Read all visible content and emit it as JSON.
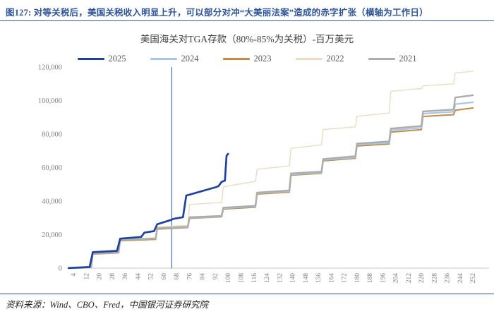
{
  "header": {
    "title": "图127: 对等关税后，美国关税收入明显上升，可以部分对冲“大美丽法案”造成的赤字扩张（横轴为工作日）"
  },
  "footer": {
    "source": "资料来源：Wind、CBO、Fred，中国银河证券研究院"
  },
  "colors": {
    "header_accent": "#2F5496",
    "axis_line": "#C8C8C8",
    "tick_label": "#7f7f7f",
    "reference_line": "#4A6FB5"
  },
  "chart_data": {
    "type": "line",
    "title": "美国海关对TGA存款（80%-85%为关税）-百万美元",
    "xlabel": "工作日",
    "ylabel": "百万美元",
    "ylim": [
      0,
      120000
    ],
    "y_ticks": [
      0,
      20000,
      40000,
      60000,
      80000,
      100000,
      120000
    ],
    "x_ticks": [
      4,
      12,
      20,
      28,
      36,
      44,
      52,
      60,
      68,
      76,
      84,
      92,
      100,
      108,
      116,
      124,
      132,
      140,
      148,
      156,
      164,
      172,
      180,
      188,
      196,
      204,
      212,
      220,
      228,
      236,
      244,
      252
    ],
    "x_max": 262,
    "grid": false,
    "legend_position": "top",
    "reference_line_x": 65,
    "series": [
      {
        "name": "2022",
        "color": "#E9DCC2",
        "width": 1.4,
        "points": [
          [
            1,
            0
          ],
          [
            15,
            400
          ],
          [
            16,
            8900
          ],
          [
            32,
            9600
          ],
          [
            33,
            17300
          ],
          [
            55,
            18200
          ],
          [
            56,
            24600
          ],
          [
            75,
            25600
          ],
          [
            76,
            38000
          ],
          [
            96,
            39200
          ],
          [
            97,
            48500
          ],
          [
            117,
            51800
          ],
          [
            118,
            59000
          ],
          [
            138,
            61000
          ],
          [
            139,
            71500
          ],
          [
            158,
            73600
          ],
          [
            159,
            82700
          ],
          [
            179,
            84300
          ],
          [
            180,
            90600
          ],
          [
            200,
            92600
          ],
          [
            201,
            105500
          ],
          [
            220,
            107200
          ],
          [
            221,
            108800
          ],
          [
            240,
            110000
          ],
          [
            241,
            116500
          ],
          [
            252,
            117500
          ]
        ]
      },
      {
        "name": "2023",
        "color": "#BF8B45",
        "width": 2.0,
        "points": [
          [
            1,
            0
          ],
          [
            15,
            300
          ],
          [
            16,
            8400
          ],
          [
            32,
            9100
          ],
          [
            33,
            16400
          ],
          [
            55,
            17200
          ],
          [
            56,
            23300
          ],
          [
            75,
            24200
          ],
          [
            76,
            29700
          ],
          [
            96,
            30600
          ],
          [
            97,
            35300
          ],
          [
            117,
            36400
          ],
          [
            118,
            44200
          ],
          [
            138,
            45300
          ],
          [
            139,
            55500
          ],
          [
            158,
            56600
          ],
          [
            159,
            64000
          ],
          [
            179,
            65600
          ],
          [
            180,
            72900
          ],
          [
            200,
            74100
          ],
          [
            201,
            81200
          ],
          [
            220,
            82600
          ],
          [
            221,
            90500
          ],
          [
            240,
            91600
          ],
          [
            241,
            94200
          ],
          [
            252,
            95600
          ]
        ]
      },
      {
        "name": "2024",
        "color": "#A8C5EA",
        "width": 2.2,
        "points": [
          [
            1,
            0
          ],
          [
            15,
            350
          ],
          [
            16,
            8800
          ],
          [
            32,
            9400
          ],
          [
            33,
            16900
          ],
          [
            55,
            17700
          ],
          [
            56,
            23600
          ],
          [
            75,
            24500
          ],
          [
            76,
            30000
          ],
          [
            96,
            30900
          ],
          [
            97,
            35700
          ],
          [
            117,
            36800
          ],
          [
            118,
            44700
          ],
          [
            138,
            45800
          ],
          [
            139,
            55900
          ],
          [
            158,
            57000
          ],
          [
            159,
            64500
          ],
          [
            179,
            66100
          ],
          [
            180,
            73600
          ],
          [
            200,
            74800
          ],
          [
            201,
            82300
          ],
          [
            220,
            83700
          ],
          [
            221,
            92200
          ],
          [
            240,
            93300
          ],
          [
            241,
            97800
          ],
          [
            252,
            99000
          ]
        ]
      },
      {
        "name": "2021",
        "color": "#ACACAC",
        "width": 2.4,
        "points": [
          [
            1,
            0
          ],
          [
            15,
            400
          ],
          [
            16,
            8600
          ],
          [
            32,
            9300
          ],
          [
            33,
            16700
          ],
          [
            55,
            17600
          ],
          [
            56,
            23800
          ],
          [
            75,
            24700
          ],
          [
            76,
            30300
          ],
          [
            96,
            31200
          ],
          [
            97,
            36100
          ],
          [
            117,
            37200
          ],
          [
            118,
            45100
          ],
          [
            138,
            46300
          ],
          [
            139,
            56500
          ],
          [
            158,
            57600
          ],
          [
            159,
            65100
          ],
          [
            179,
            66800
          ],
          [
            180,
            74300
          ],
          [
            200,
            75600
          ],
          [
            201,
            83300
          ],
          [
            220,
            84800
          ],
          [
            221,
            93500
          ],
          [
            240,
            94600
          ],
          [
            241,
            101800
          ],
          [
            252,
            103200
          ]
        ]
      },
      {
        "name": "2025",
        "color": "#1E429E",
        "width": 2.7,
        "points": [
          [
            1,
            100
          ],
          [
            14,
            700
          ],
          [
            16,
            9500
          ],
          [
            31,
            10300
          ],
          [
            33,
            17600
          ],
          [
            46,
            18600
          ],
          [
            48,
            21200
          ],
          [
            54,
            22100
          ],
          [
            56,
            26200
          ],
          [
            64,
            28600
          ],
          [
            66,
            29400
          ],
          [
            72,
            30400
          ],
          [
            74,
            43300
          ],
          [
            92,
            48200
          ],
          [
            94,
            48900
          ],
          [
            96,
            51500
          ],
          [
            98,
            52200
          ],
          [
            99,
            67000
          ],
          [
            100,
            68200
          ]
        ]
      }
    ],
    "legend_order": [
      "2025",
      "2024",
      "2023",
      "2022",
      "2021"
    ]
  }
}
